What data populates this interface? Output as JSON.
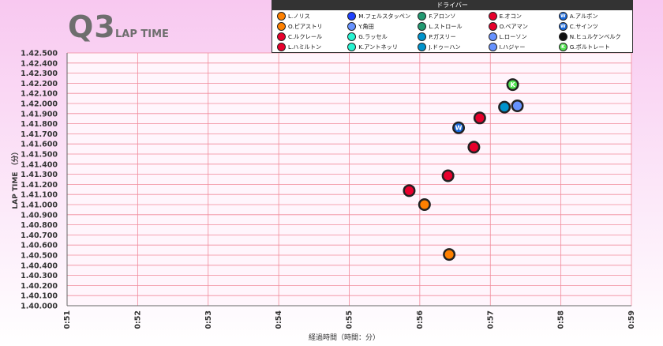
{
  "header": {
    "title": "Q3",
    "subtitle": "LAP TIME"
  },
  "legend": {
    "title": "ドライバー",
    "items": [
      {
        "name": "L.ノリス",
        "color": "#ff8000",
        "mark": ""
      },
      {
        "name": "M.フェルスタッペン",
        "color": "#1e41ff",
        "mark": ""
      },
      {
        "name": "F.アロンソ",
        "color": "#229971",
        "mark": ""
      },
      {
        "name": "E.オコン",
        "color": "#e6002b",
        "mark": ""
      },
      {
        "name": "A.アルボン",
        "color": "#1868db",
        "mark": "W"
      },
      {
        "name": "O.ピアストリ",
        "color": "#ff8000",
        "mark": ""
      },
      {
        "name": "Y.角田",
        "color": "#6692ff",
        "mark": ""
      },
      {
        "name": "L.ストロール",
        "color": "#229971",
        "mark": ""
      },
      {
        "name": "O.ベアマン",
        "color": "#e6002b",
        "mark": ""
      },
      {
        "name": "C.サインツ",
        "color": "#1868db",
        "mark": "W"
      },
      {
        "name": "C.ルクレール",
        "color": "#e8002d",
        "mark": ""
      },
      {
        "name": "G.ラッセル",
        "color": "#27f4d2",
        "mark": ""
      },
      {
        "name": "P.ガスリー",
        "color": "#0093cc",
        "mark": ""
      },
      {
        "name": "L.ローソン",
        "color": "#6692ff",
        "mark": ""
      },
      {
        "name": "N.ヒュルケンベルク",
        "color": "#111111",
        "mark": ""
      },
      {
        "name": "L.ハミルトン",
        "color": "#e8002d",
        "mark": ""
      },
      {
        "name": "K.アントネッリ",
        "color": "#27f4d2",
        "mark": ""
      },
      {
        "name": "J.ドゥーハン",
        "color": "#0093cc",
        "mark": ""
      },
      {
        "name": "I.ハジャー",
        "color": "#6692ff",
        "mark": ""
      },
      {
        "name": "G.ボルトレート",
        "color": "#52e252",
        "mark": "K"
      }
    ]
  },
  "chart_data": {
    "type": "scatter",
    "xlabel": "経過時間（時間：分）",
    "ylabel": "LAP TIME （分）",
    "x_ticks": [
      "0:51",
      "0:52",
      "0:53",
      "0:54",
      "0:55",
      "0:56",
      "0:57",
      "0:58",
      "0:59"
    ],
    "y_ticks": [
      "1.40.000",
      "1.40.100",
      "1.40.200",
      "1.40.300",
      "1.40.400",
      "1.40.500",
      "1.40.600",
      "1.40.700",
      "1.40.800",
      "1.40.900",
      "1.41.000",
      "1.41.100",
      "1.41.200",
      "1.41.300",
      "1.41.400",
      "1.41.500",
      "1.41.600",
      "1.41.700",
      "1.41.800",
      "1.41.900",
      "1.42.000",
      "1.42.100",
      "1.42.200",
      "1.42.300",
      "1.42.400",
      "1.42.500"
    ],
    "xlim": [
      "0:51",
      "0:59"
    ],
    "ylim": [
      "1.40.000",
      "1.42.500"
    ],
    "grid": true,
    "points": [
      {
        "driver": "O.ピアストリ",
        "x": "0:56:25",
        "y": "1.40.507",
        "color": "#ff8000",
        "mark": ""
      },
      {
        "driver": "L.ノリス",
        "x": "0:56:04",
        "y": "1.41.000",
        "color": "#ff8000",
        "mark": ""
      },
      {
        "driver": "L.ハミルトン",
        "x": "0:55:51",
        "y": "1.41.138",
        "color": "#e8002d",
        "mark": ""
      },
      {
        "driver": "C.ルクレール",
        "x": "0:56:24",
        "y": "1.41.285",
        "color": "#e8002d",
        "mark": ""
      },
      {
        "driver": "O.ベアマン",
        "x": "0:56:46",
        "y": "1.41.568",
        "color": "#e6002b",
        "mark": ""
      },
      {
        "driver": "C.サインツ",
        "x": "0:56:33",
        "y": "1.41.760",
        "color": "#1868db",
        "mark": "W"
      },
      {
        "driver": "E.オコン",
        "x": "0:56:51",
        "y": "1.41.857",
        "color": "#e6002b",
        "mark": ""
      },
      {
        "driver": "J.ドゥーハン",
        "x": "0:57:12",
        "y": "1.41.964",
        "color": "#0093cc",
        "mark": ""
      },
      {
        "driver": "I.ハジャー",
        "x": "0:57:23",
        "y": "1.41.977",
        "color": "#6692ff",
        "mark": ""
      },
      {
        "driver": "G.ボルトレート",
        "x": "0:57:19",
        "y": "1.42.187",
        "color": "#52e252",
        "mark": "K"
      }
    ]
  }
}
